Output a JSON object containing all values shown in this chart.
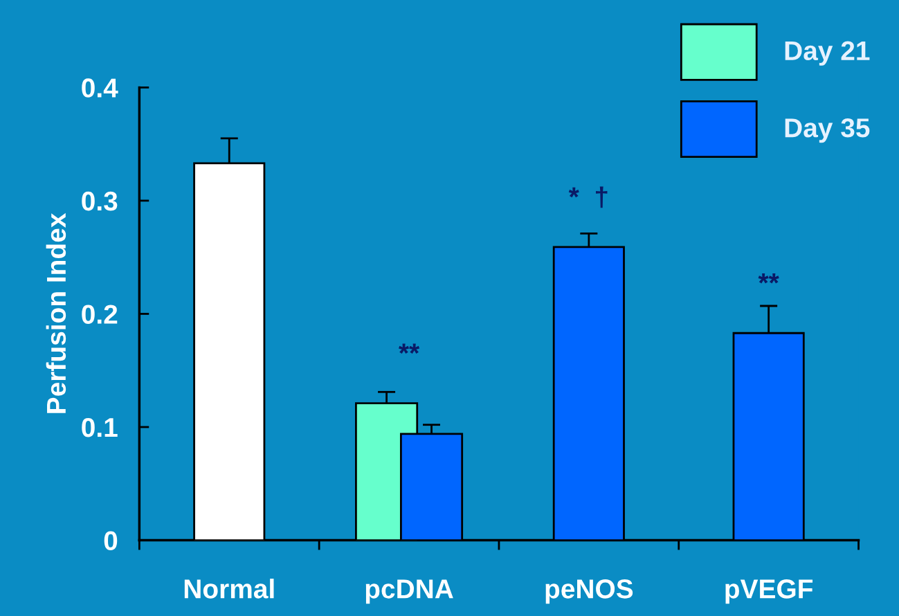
{
  "chart_data": {
    "type": "bar",
    "ylabel": "Perfusion Index",
    "categories": [
      "Normal",
      "pcDNA",
      "peNOS",
      "pVEGF"
    ],
    "series": [
      {
        "color": "#ffffff",
        "values": [
          0.333,
          null,
          null,
          null
        ],
        "errors": [
          0.022,
          null,
          null,
          null
        ]
      },
      {
        "name": "Day 21",
        "color": "#66ffcc",
        "values": [
          null,
          0.121,
          null,
          null
        ],
        "errors": [
          null,
          0.01,
          null,
          null
        ]
      },
      {
        "name": "Day 35",
        "color": "#0066ff",
        "values": [
          null,
          0.094,
          0.259,
          0.183
        ],
        "errors": [
          null,
          0.008,
          0.012,
          0.024
        ]
      }
    ],
    "ylim": [
      0,
      0.4
    ],
    "yticks": [
      0,
      0.1,
      0.2,
      0.3,
      0.4
    ],
    "grid": false,
    "legend": "top right",
    "annotations": [
      {
        "text": "**",
        "x": "pcDNA",
        "y": 0.121
      },
      {
        "text": "*  †",
        "x": "peNOS",
        "y": 0.259
      },
      {
        "text": "**",
        "x": "pVEGF",
        "y": 0.183
      }
    ]
  }
}
